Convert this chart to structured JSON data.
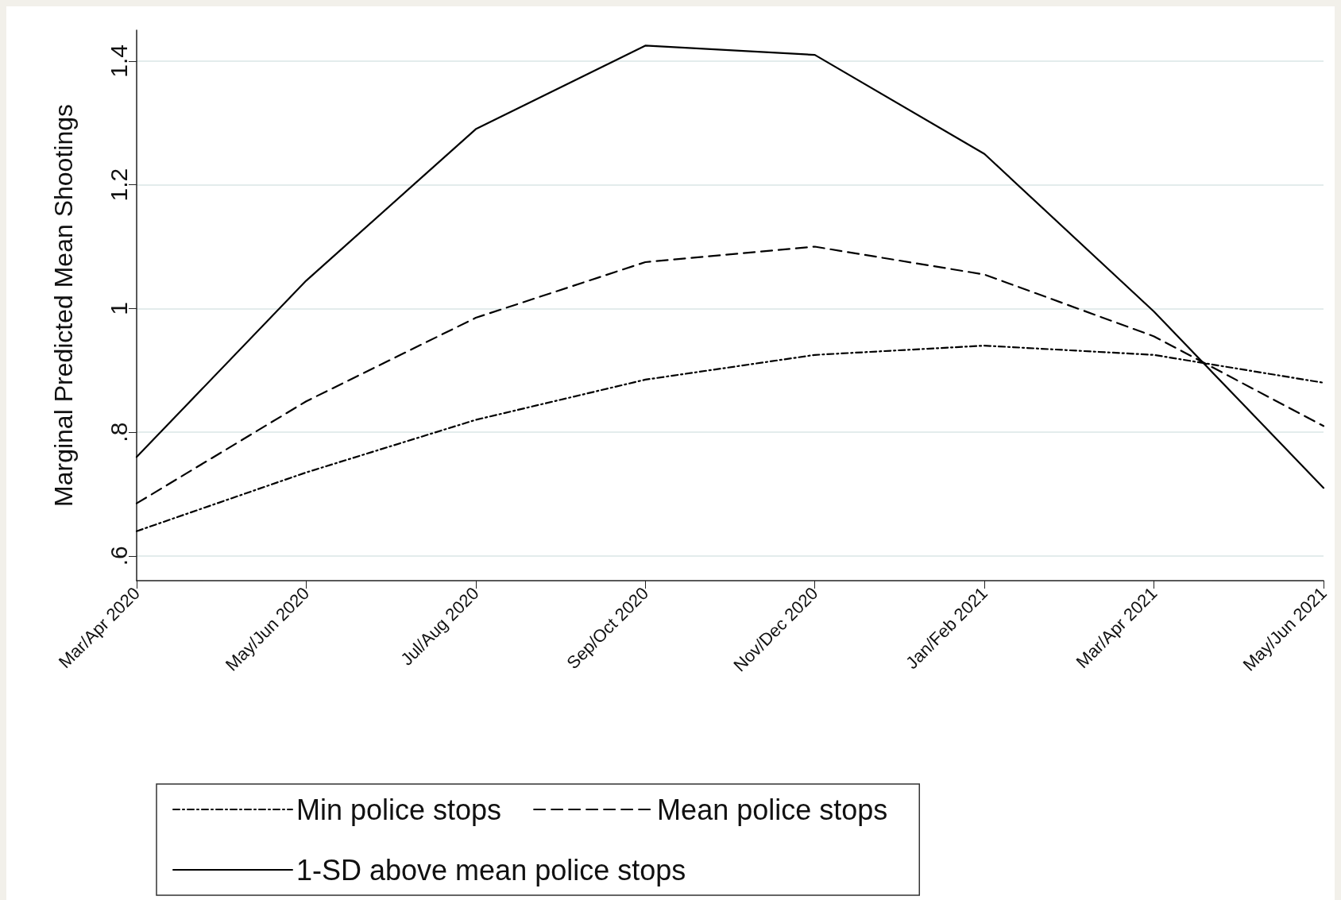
{
  "chart_data": {
    "type": "line",
    "ylabel": "Marginal Predicted Mean Shootings",
    "categories": [
      "Mar/Apr 2020",
      "May/Jun 2020",
      "Jul/Aug 2020",
      "Sep/Oct 2020",
      "Nov/Dec 2020",
      "Jan/Feb 2021",
      "Mar/Apr 2021",
      "May/Jun 2021"
    ],
    "series": [
      {
        "name": "Min police stops",
        "color": "#000000",
        "line_style": "dashdot",
        "values": [
          0.64,
          0.735,
          0.82,
          0.885,
          0.925,
          0.94,
          0.925,
          0.88
        ]
      },
      {
        "name": "Mean police stops",
        "color": "#000000",
        "line_style": "dashed",
        "values": [
          0.685,
          0.85,
          0.985,
          1.075,
          1.1,
          1.055,
          0.955,
          0.81
        ]
      },
      {
        "name": "1-SD above mean police stops",
        "color": "#000000",
        "line_style": "solid",
        "values": [
          0.76,
          1.045,
          1.29,
          1.425,
          1.41,
          1.25,
          0.995,
          0.71
        ]
      }
    ],
    "ylim": [
      0.56,
      1.45
    ],
    "yticks": [
      {
        "value": 0.6,
        "label": ".6"
      },
      {
        "value": 0.8,
        "label": ".8"
      },
      {
        "value": 1,
        "label": "1"
      },
      {
        "value": 1.2,
        "label": "1.2"
      },
      {
        "value": 1.4,
        "label": "1.4"
      }
    ],
    "grid": "y",
    "legend": "bottom",
    "marker": "none"
  }
}
